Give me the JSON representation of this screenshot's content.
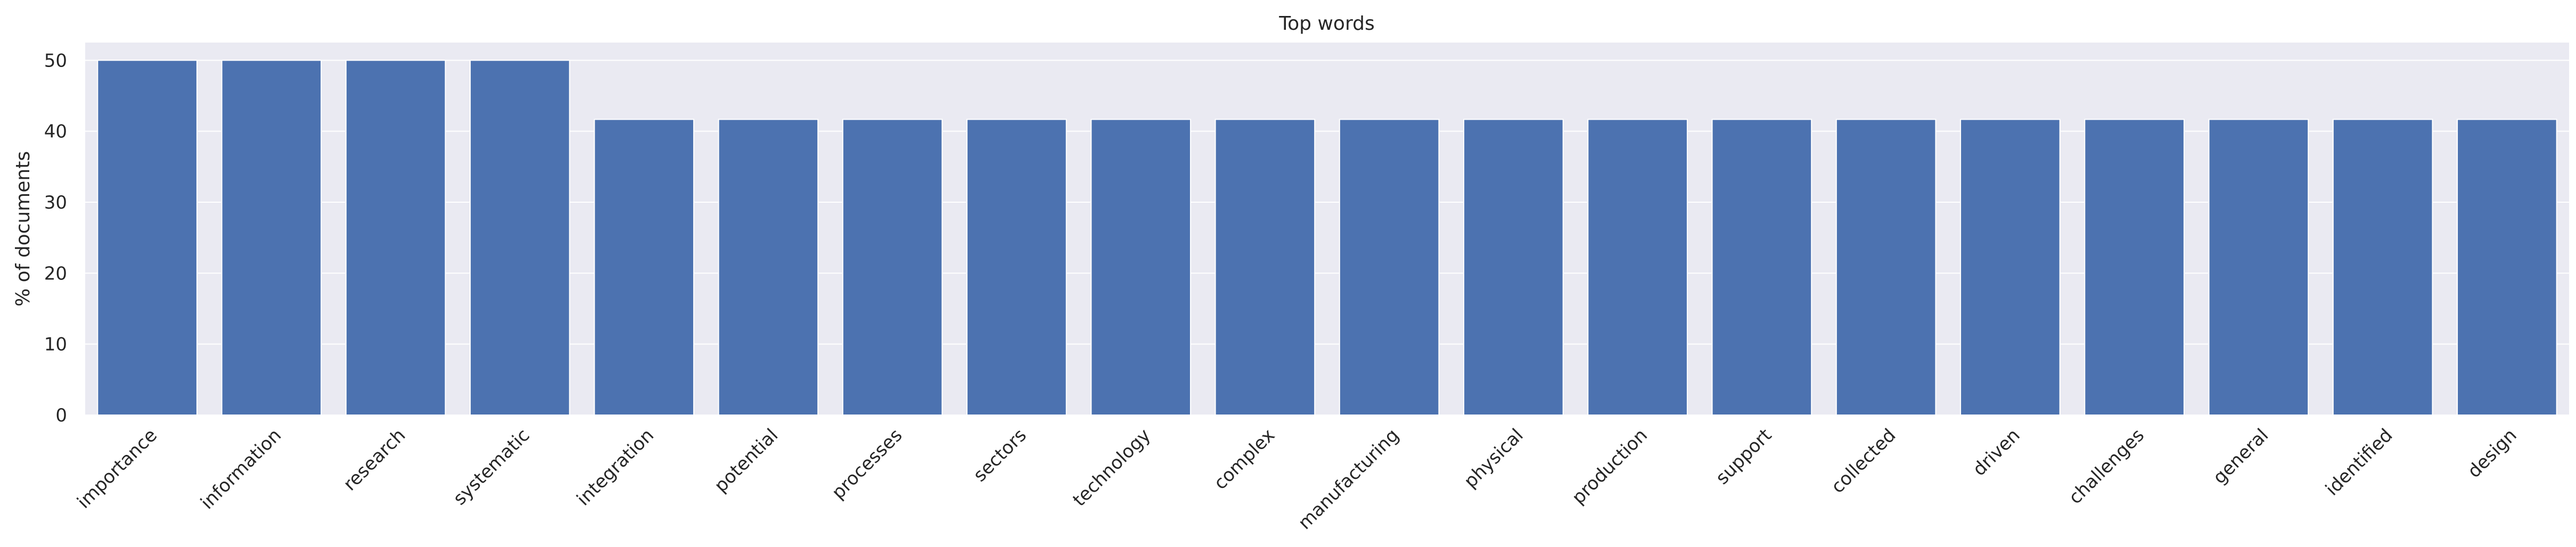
{
  "chart_data": {
    "type": "bar",
    "title": "Top words",
    "xlabel": "",
    "ylabel": "% of documents",
    "categories": [
      "importance",
      "information",
      "research",
      "systematic",
      "integration",
      "potential",
      "processes",
      "sectors",
      "technology",
      "complex",
      "manufacturing",
      "physical",
      "production",
      "support",
      "collected",
      "driven",
      "challenges",
      "general",
      "identified",
      "design"
    ],
    "values": [
      50,
      50,
      50,
      50,
      41.67,
      41.67,
      41.67,
      41.67,
      41.67,
      41.67,
      41.67,
      41.67,
      41.67,
      41.67,
      41.67,
      41.67,
      41.67,
      41.67,
      41.67,
      41.67
    ],
    "ylim": [
      0,
      52.5
    ],
    "yticks": [
      0,
      10,
      20,
      30,
      40,
      50
    ],
    "grid": true,
    "colors": {
      "bar": "#4c72b0",
      "plot_background": "#eaeaf2",
      "grid": "#ffffff",
      "text": "#262626"
    }
  }
}
